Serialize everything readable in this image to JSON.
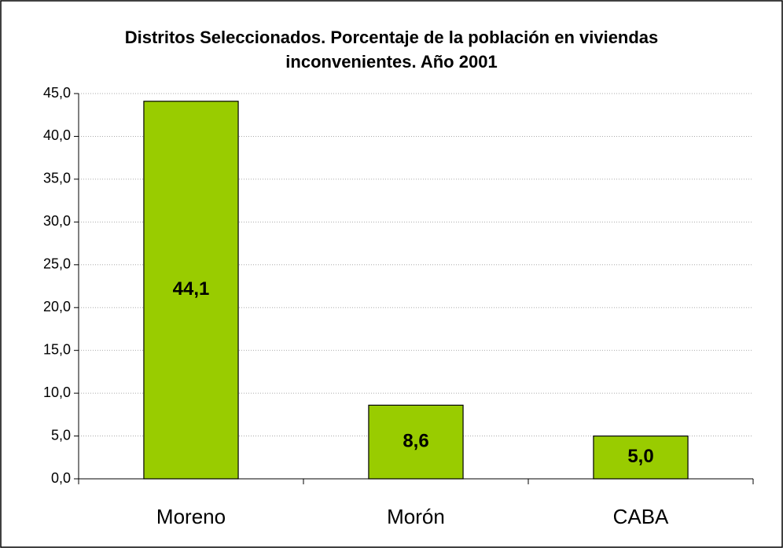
{
  "chart_data": {
    "type": "bar",
    "title": "Distritos Seleccionados. Porcentaje de la población en viviendas inconvenientes. Año 2001",
    "categories": [
      "Moreno",
      "Morón",
      "CABA"
    ],
    "values": [
      44.1,
      8.6,
      5.0
    ],
    "value_labels": [
      "44,1",
      "8,6",
      "5,0"
    ],
    "color": "#99cc00",
    "ylim": [
      0,
      45
    ],
    "yticks": [
      {
        "value": 0,
        "label": "0,0"
      },
      {
        "value": 5,
        "label": "5,0"
      },
      {
        "value": 10,
        "label": "10,0"
      },
      {
        "value": 15,
        "label": "15,0"
      },
      {
        "value": 20,
        "label": "20,0"
      },
      {
        "value": 25,
        "label": "25,0"
      },
      {
        "value": 30,
        "label": "30,0"
      },
      {
        "value": 35,
        "label": "35,0"
      },
      {
        "value": 40,
        "label": "40,0"
      },
      {
        "value": 45,
        "label": "45,0"
      }
    ],
    "grid": true
  }
}
